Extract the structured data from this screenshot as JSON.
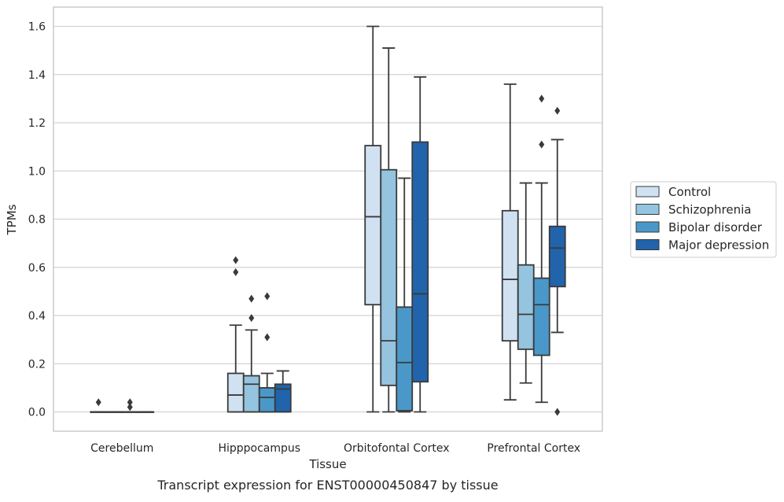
{
  "chart_data": {
    "type": "box",
    "caption": "Transcript expression for ENST00000450847 by tissue",
    "xlabel": "Tissue",
    "ylabel": "TPMs",
    "ylim": [
      -0.08,
      1.68
    ],
    "yticks": [
      "0.0",
      "0.2",
      "0.4",
      "0.6",
      "0.8",
      "1.0",
      "1.2",
      "1.4",
      "1.6"
    ],
    "grid": true,
    "legend_position": "right",
    "categories": [
      "Cerebellum",
      "Hipppocampus",
      "Orbitofontal Cortex",
      "Prefrontal Cortex"
    ],
    "series": [
      {
        "name": "Control",
        "color": "#d0e1f2",
        "boxes": [
          {
            "whisker_low": 0.0,
            "q1": 0.0,
            "median": 0.0,
            "q3": 0.0,
            "whisker_high": 0.0,
            "outliers": [
              0.04
            ]
          },
          {
            "whisker_low": 0.0,
            "q1": 0.0,
            "median": 0.07,
            "q3": 0.16,
            "whisker_high": 0.36,
            "outliers": [
              0.58,
              0.63
            ]
          },
          {
            "whisker_low": 0.0,
            "q1": 0.445,
            "median": 0.81,
            "q3": 1.105,
            "whisker_high": 1.6,
            "outliers": []
          },
          {
            "whisker_low": 0.05,
            "q1": 0.295,
            "median": 0.55,
            "q3": 0.835,
            "whisker_high": 1.36,
            "outliers": []
          }
        ]
      },
      {
        "name": "Schizophrenia",
        "color": "#94c4df",
        "boxes": [
          {
            "whisker_low": 0.0,
            "q1": 0.0,
            "median": 0.0,
            "q3": 0.0,
            "whisker_high": 0.0,
            "outliers": []
          },
          {
            "whisker_low": 0.0,
            "q1": 0.0,
            "median": 0.115,
            "q3": 0.15,
            "whisker_high": 0.34,
            "outliers": [
              0.39,
              0.47
            ]
          },
          {
            "whisker_low": 0.0,
            "q1": 0.11,
            "median": 0.295,
            "q3": 1.005,
            "whisker_high": 1.51,
            "outliers": []
          },
          {
            "whisker_low": 0.12,
            "q1": 0.26,
            "median": 0.405,
            "q3": 0.61,
            "whisker_high": 0.95,
            "outliers": []
          }
        ]
      },
      {
        "name": "Bipolar disorder",
        "color": "#4a98c9",
        "boxes": [
          {
            "whisker_low": 0.0,
            "q1": 0.0,
            "median": 0.0,
            "q3": 0.0,
            "whisker_high": 0.0,
            "outliers": [
              0.02,
              0.04
            ]
          },
          {
            "whisker_low": 0.0,
            "q1": 0.0,
            "median": 0.06,
            "q3": 0.1,
            "whisker_high": 0.16,
            "outliers": [
              0.31,
              0.48
            ]
          },
          {
            "whisker_low": 0.0,
            "q1": 0.005,
            "median": 0.205,
            "q3": 0.435,
            "whisker_high": 0.97,
            "outliers": []
          },
          {
            "whisker_low": 0.04,
            "q1": 0.235,
            "median": 0.445,
            "q3": 0.555,
            "whisker_high": 0.95,
            "outliers": [
              1.11,
              1.3
            ]
          }
        ]
      },
      {
        "name": "Major depression",
        "color": "#2164ab",
        "boxes": [
          {
            "whisker_low": 0.0,
            "q1": 0.0,
            "median": 0.0,
            "q3": 0.0,
            "whisker_high": 0.0,
            "outliers": []
          },
          {
            "whisker_low": 0.0,
            "q1": 0.0,
            "median": 0.095,
            "q3": 0.115,
            "whisker_high": 0.17,
            "outliers": []
          },
          {
            "whisker_low": 0.0,
            "q1": 0.125,
            "median": 0.49,
            "q3": 1.12,
            "whisker_high": 1.39,
            "outliers": []
          },
          {
            "whisker_low": 0.33,
            "q1": 0.52,
            "median": 0.68,
            "q3": 0.77,
            "whisker_high": 1.13,
            "outliers": [
              0.0,
              1.25
            ]
          }
        ]
      }
    ]
  }
}
